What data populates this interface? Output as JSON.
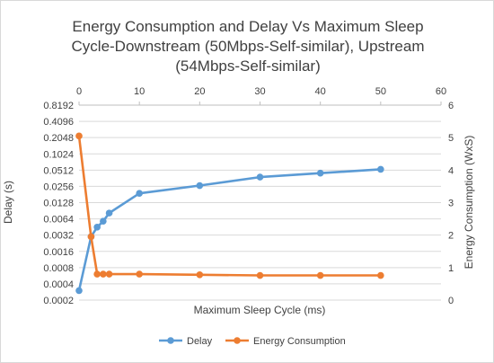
{
  "chart_data": {
    "type": "line",
    "title_lines": [
      "Energy Consumption and Delay Vs Maximum Sleep",
      "Cycle-Downstream (50Mbps-Self-similar), Upstream",
      "(54Mbps-Self-similar)"
    ],
    "xlabel": "Maximum Sleep Cycle (ms)",
    "ylabel_left": "Delay (s)",
    "ylabel_right": "Energy Consumption (WxS)",
    "xlim": [
      0,
      60
    ],
    "x_ticks": [
      "0",
      "10",
      "20",
      "30",
      "40",
      "50",
      "60"
    ],
    "y_left_scale": "log2",
    "y_left_ticks": [
      "0.0002",
      "0.0004",
      "0.0008",
      "0.0016",
      "0.0032",
      "0.0064",
      "0.0128",
      "0.0256",
      "0.0512",
      "0.1024",
      "0.2048",
      "0.4096",
      "0.8192"
    ],
    "y_right_lim": [
      0,
      6
    ],
    "y_right_ticks": [
      "0",
      "1",
      "2",
      "3",
      "4",
      "5",
      "6"
    ],
    "grid": true,
    "legend_position": "bottom",
    "series": [
      {
        "name": "Delay",
        "axis": "left",
        "color": "#5b9bd5",
        "x": [
          0,
          2,
          3,
          4,
          5,
          10,
          20,
          30,
          40,
          50
        ],
        "y": [
          0.0003,
          0.003,
          0.0045,
          0.0058,
          0.0082,
          0.019,
          0.0265,
          0.038,
          0.045,
          0.053
        ]
      },
      {
        "name": "Energy Consumption",
        "axis": "right",
        "color": "#ed7d31",
        "x": [
          0,
          2,
          3,
          4,
          5,
          10,
          20,
          30,
          40,
          50
        ],
        "y": [
          5.05,
          1.95,
          0.8,
          0.8,
          0.8,
          0.8,
          0.78,
          0.76,
          0.76,
          0.76
        ]
      }
    ]
  }
}
